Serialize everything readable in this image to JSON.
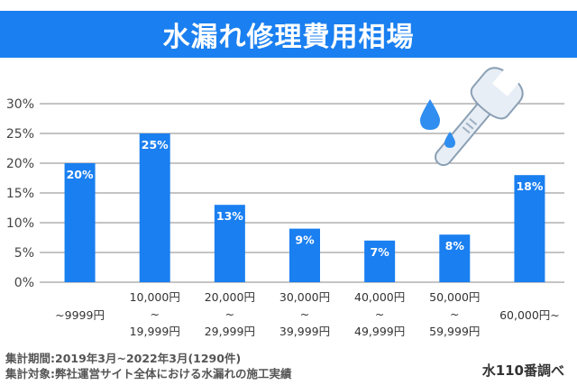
{
  "chart_data": {
    "type": "bar",
    "title": "水漏れ修理費用相場",
    "categories": [
      [
        "~9999円"
      ],
      [
        "10,000円",
        "~",
        "19,999円"
      ],
      [
        "20,000円",
        "~",
        "29,999円"
      ],
      [
        "30,000円",
        "~",
        "39,999円"
      ],
      [
        "40,000円",
        "~",
        "49,999円"
      ],
      [
        "50,000円",
        "~",
        "59,999円"
      ],
      [
        "60,000円~"
      ]
    ],
    "values": [
      20,
      25,
      13,
      9,
      7,
      8,
      18
    ],
    "value_labels": [
      "20%",
      "25%",
      "13%",
      "9%",
      "7%",
      "8%",
      "18%"
    ],
    "ylim": [
      0,
      30
    ],
    "yticks": [
      "0%",
      "5%",
      "10%",
      "15%",
      "20%",
      "25%",
      "30%"
    ],
    "grid": true,
    "bar_color": "#1a7ff0"
  },
  "footer": {
    "line1": "集計期間:2019年3月~2022年3月(1290件)",
    "line2": "集計対象:弊社運営サイト全体における水漏れの施工実績",
    "source": "水110番調べ"
  },
  "illustration": {
    "icon": "wrench-icon",
    "drops": "water-drop-icon"
  }
}
